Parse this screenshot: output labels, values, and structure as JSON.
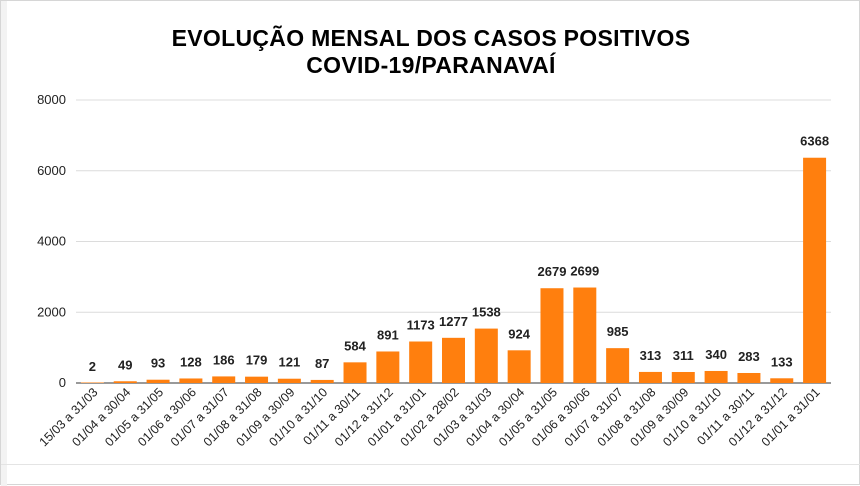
{
  "chart_data": {
    "type": "bar",
    "title_line1": "EVOLUÇÃO MENSAL DOS CASOS POSITIVOS",
    "title_line2": "COVID-19/PARANAVAÍ",
    "xlabel": "",
    "ylabel": "",
    "ylim": [
      0,
      8000
    ],
    "yticks": [
      0,
      2000,
      4000,
      6000,
      8000
    ],
    "grid": "horizontal",
    "legend": "none",
    "bar_color": "#ff7f0e",
    "categories": [
      "15/03 a 31/03",
      "01/04 a 30/04",
      "01/05 a 31/05",
      "01/06 a 30/06",
      "01/07 a 31/07",
      "01/08 a 31/08",
      "01/09 a 30/09",
      "01/10 a 31/10",
      "01/11 a 30/11",
      "01/12 a 31/12",
      "01/01 a 31/01",
      "01/02 a 28/02",
      "01/03 a 31/03",
      "01/04 a 30/04",
      "01/05 a 31/05",
      "01/06 a 30/06",
      "01/07 a 31/07",
      "01/08 a 31/08",
      "01/09 a 30/09",
      "01/10 a 31/10",
      "01/11 a 30/11",
      "01/12 a 31/12",
      "01/01 a 31/01"
    ],
    "values": [
      2,
      49,
      93,
      128,
      186,
      179,
      121,
      87,
      584,
      891,
      1173,
      1277,
      1538,
      924,
      2679,
      2699,
      985,
      313,
      311,
      340,
      283,
      133,
      6368
    ]
  }
}
